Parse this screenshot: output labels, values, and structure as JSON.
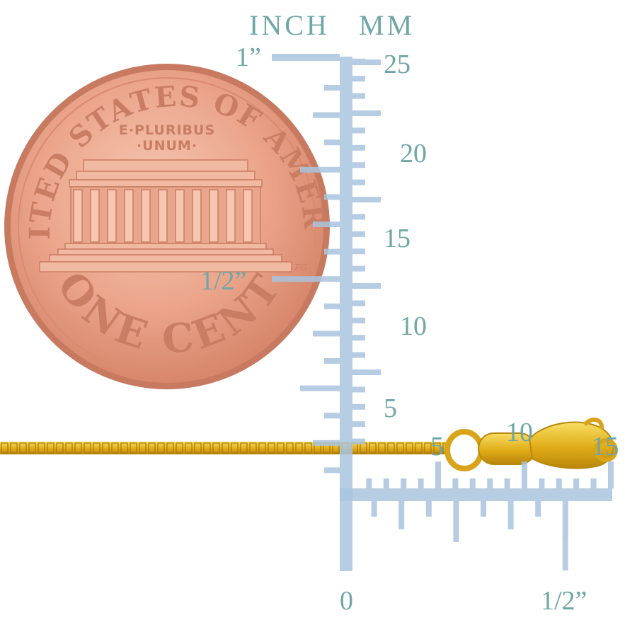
{
  "scale": {
    "header_inch": "INCH",
    "header_mm": "MM",
    "inch_top": "1”",
    "inch_half_vertical": "1/2”",
    "inch_zero": "0",
    "inch_half_horizontal": "1/2”",
    "mm_vertical": [
      "25",
      "20",
      "15",
      "10",
      "5"
    ],
    "mm_horizontal": [
      "5",
      "10",
      "15"
    ],
    "color": "#a9c4df",
    "label_color": "#6fa6a8"
  },
  "coin": {
    "top_text": "UNITED STATES OF AMERICA",
    "motto_line1": "E·PLURIBUS",
    "motto_line2": "·UNUM·",
    "bottom_text": "ONE CENT",
    "initials": "FG",
    "color": "#e39b83"
  },
  "chain": {
    "color": "#e2b21c"
  }
}
